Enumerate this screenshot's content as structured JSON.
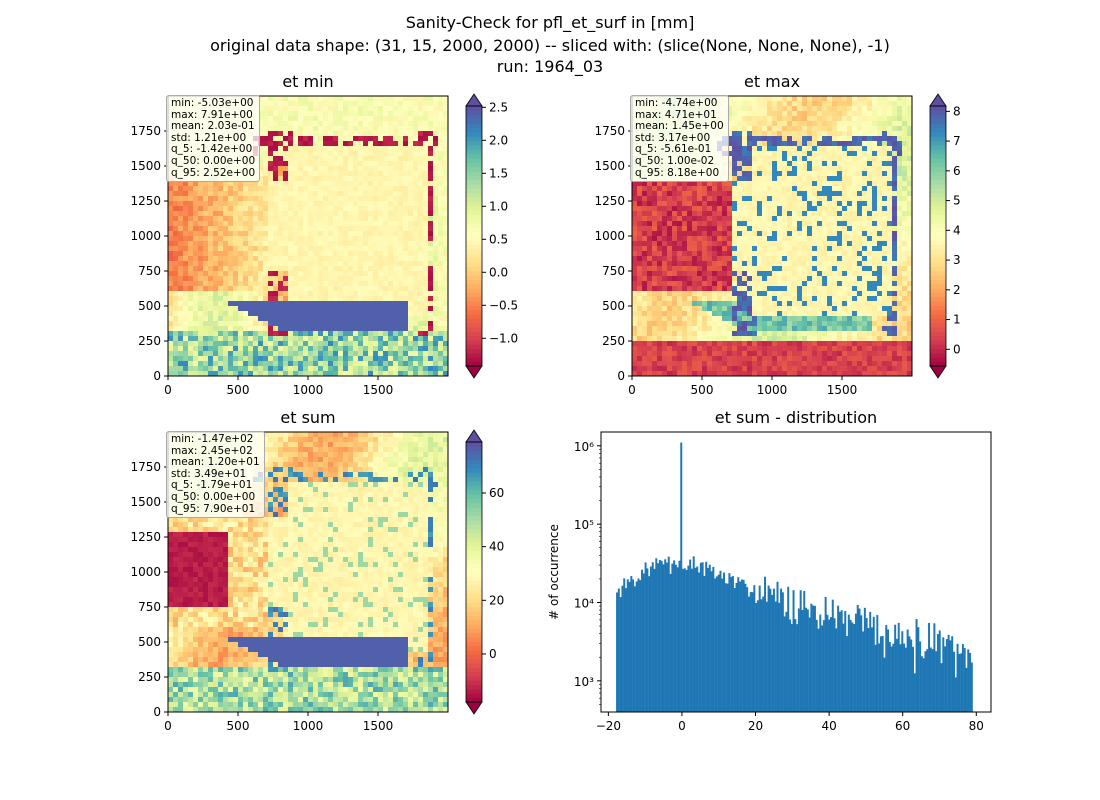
{
  "figure": {
    "title_line1": "Sanity-Check for pfl_et_surf in [mm]",
    "title_line2": "original data shape: (31, 15, 2000, 2000) -- sliced with: (slice(None, None, None), -1)",
    "title_line3": "run: 1964_03"
  },
  "colors": {
    "spectral_stops": [
      "#9e0142",
      "#d53e4f",
      "#f46d43",
      "#fdae61",
      "#fee08b",
      "#ffffbf",
      "#e6f598",
      "#abdda4",
      "#66c2a5",
      "#3288bd",
      "#5e4fa2"
    ],
    "hist_bar": "#1f77b4"
  },
  "chart_data": [
    {
      "type": "heatmap",
      "title": "et min",
      "xlim": [
        0,
        2000
      ],
      "ylim": [
        0,
        2000
      ],
      "xticks": [
        0,
        500,
        1000,
        1500
      ],
      "yticks": [
        0,
        250,
        500,
        750,
        1000,
        1250,
        1500,
        1750
      ],
      "colorbar": {
        "vmin": -1.42,
        "vmax": 2.52,
        "ticks": [
          -1.0,
          -0.5,
          0.0,
          0.5,
          1.0,
          1.5,
          2.0,
          2.5
        ],
        "tick_labels": [
          "−1.0",
          "−0.5",
          "0.0",
          "0.5",
          "1.0",
          "1.5",
          "2.0",
          "2.5"
        ],
        "extend": "both",
        "cmap": "Spectral"
      },
      "stats": [
        "min: -5.03e+00",
        "max: 7.91e+00",
        "mean: 2.03e-01",
        "std: 1.21e+00",
        "q_5: -1.42e+00",
        "q_50: 0.00e+00",
        "q_95: 2.52e+00"
      ]
    },
    {
      "type": "heatmap",
      "title": "et max",
      "xlim": [
        0,
        2000
      ],
      "ylim": [
        0,
        2000
      ],
      "xticks": [
        0,
        500,
        1000,
        1500
      ],
      "yticks": [
        0,
        250,
        500,
        750,
        1000,
        1250,
        1500,
        1750
      ],
      "colorbar": {
        "vmin": -0.561,
        "vmax": 8.18,
        "ticks": [
          0,
          1,
          2,
          3,
          4,
          5,
          6,
          7,
          8
        ],
        "tick_labels": [
          "0",
          "1",
          "2",
          "3",
          "4",
          "5",
          "6",
          "7",
          "8"
        ],
        "extend": "both",
        "cmap": "Spectral"
      },
      "stats": [
        "min: -4.74e+00",
        "max: 4.71e+01",
        "mean: 1.45e+00",
        "std: 3.17e+00",
        "q_5: -5.61e-01",
        "q_50: 1.00e-02",
        "q_95: 8.18e+00"
      ]
    },
    {
      "type": "heatmap",
      "title": "et sum",
      "xlim": [
        0,
        2000
      ],
      "ylim": [
        0,
        2000
      ],
      "xticks": [
        0,
        500,
        1000,
        1500
      ],
      "yticks": [
        0,
        250,
        500,
        750,
        1000,
        1250,
        1500,
        1750
      ],
      "colorbar": {
        "vmin": -17.9,
        "vmax": 79.0,
        "ticks": [
          0,
          20,
          40,
          60
        ],
        "tick_labels": [
          "0",
          "20",
          "40",
          "60"
        ],
        "extend": "both",
        "cmap": "Spectral"
      },
      "stats": [
        "min: -1.47e+02",
        "max: 2.45e+02",
        "mean: 1.20e+01",
        "std: 3.49e+01",
        "q_5: -1.79e+01",
        "q_50: 0.00e+00",
        "q_95: 7.90e+01"
      ]
    },
    {
      "type": "bar",
      "title": "et sum - distribution",
      "ylabel": "# of occurrence",
      "xlim": [
        -22,
        84
      ],
      "ylim": [
        400,
        1500000
      ],
      "yscale": "log",
      "xticks": [
        -20,
        0,
        20,
        40,
        60,
        80
      ],
      "xtick_labels": [
        "−20",
        "0",
        "20",
        "40",
        "60",
        "80"
      ],
      "yticks": [
        1000,
        10000,
        100000,
        1000000
      ],
      "ytick_labels": [
        "10³",
        "10⁴",
        "10⁵",
        "10⁶"
      ],
      "bin_range": [
        -17.9,
        79.0
      ],
      "bins": 200,
      "peak": {
        "x": 0,
        "count": 1100000
      },
      "profile_x": [
        -17.9,
        -16,
        -12,
        -8,
        -4,
        -1,
        0.4,
        4,
        10,
        20,
        30,
        40,
        50,
        60,
        70,
        79
      ],
      "profile_counts": [
        13000,
        16000,
        22000,
        29000,
        31000,
        26000,
        33000,
        30000,
        22000,
        14000,
        9000,
        6500,
        5000,
        3800,
        3000,
        2400
      ]
    }
  ]
}
